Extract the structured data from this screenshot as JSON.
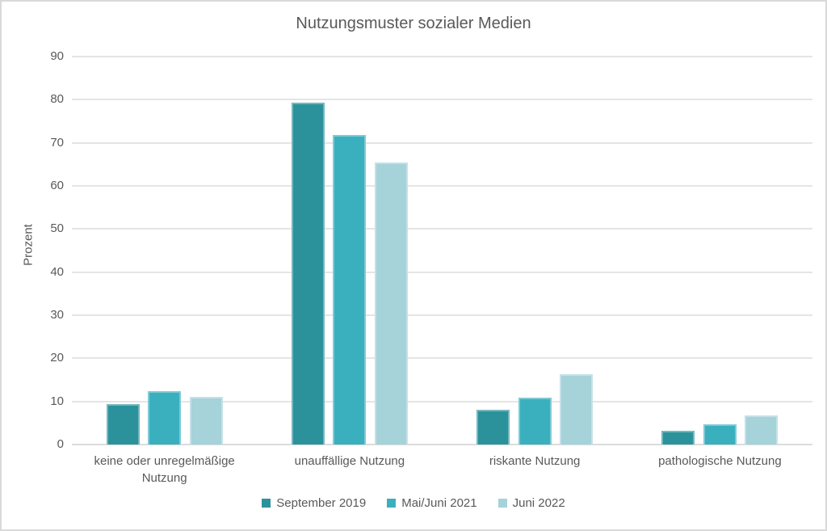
{
  "title": "Nutzungsmuster sozialer Medien",
  "chart_data": {
    "type": "bar",
    "title": "Nutzungsmuster sozialer Medien",
    "xlabel": "",
    "ylabel": "Prozent",
    "ylim": [
      0,
      90
    ],
    "ytick_step": 10,
    "grid": true,
    "legend_position": "bottom",
    "categories": [
      "keine oder unregelmäßige Nutzung",
      "unauffällige Nutzung",
      "riskante Nutzung",
      "pathologische Nutzung"
    ],
    "series": [
      {
        "name": "September 2019",
        "color": "#2B929C",
        "values": [
          9.4,
          79.3,
          8.1,
          3.2
        ]
      },
      {
        "name": "Mai/Juni 2021",
        "color": "#3AB0BF",
        "values": [
          12.4,
          71.8,
          10.8,
          4.7
        ]
      },
      {
        "name": "Juni 2022",
        "color": "#A6D2DA",
        "values": [
          11.0,
          65.4,
          16.4,
          6.7
        ]
      }
    ]
  },
  "colors": {
    "text": "#595959",
    "gridline": "#E5E5E5",
    "border": "#D9D9D9",
    "background": "#FFFFFF"
  }
}
